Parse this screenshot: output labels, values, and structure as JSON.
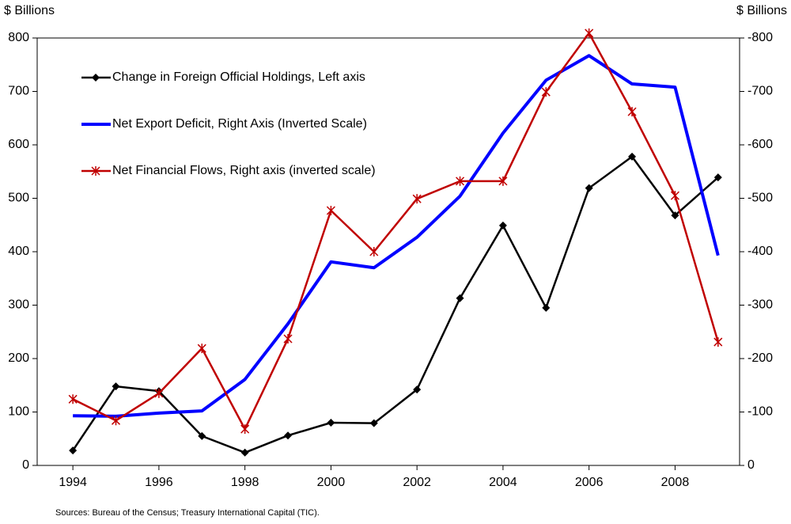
{
  "chart_data": {
    "type": "line",
    "ylabel": "$ Billions",
    "y2label": "$ Billions",
    "note": "Sources:  Bureau of the Census; Treasury International Capital (TIC).",
    "x": [
      1994,
      1995,
      1996,
      1997,
      1998,
      1999,
      2000,
      2001,
      2002,
      2003,
      2004,
      2005,
      2006,
      2007,
      2008,
      2009
    ],
    "xlim": [
      1993.17,
      2009.5
    ],
    "xticks": [
      1994,
      1996,
      1998,
      2000,
      2002,
      2004,
      2006,
      2008
    ],
    "ylim": [
      0,
      800
    ],
    "yticks": [
      0,
      100,
      200,
      300,
      400,
      500,
      600,
      700,
      800
    ],
    "y2lim": [
      0,
      -800
    ],
    "y2ticks": [
      0,
      -100,
      -200,
      -300,
      -400,
      -500,
      -600,
      -700,
      -800
    ],
    "legend": "upper left",
    "series": [
      {
        "name": "Change in Foreign Official Holdings, Left axis",
        "color": "#000000",
        "marker": "diamond",
        "values": [
          28,
          148,
          139,
          55,
          24,
          56,
          80,
          79,
          142,
          313,
          449,
          295,
          519,
          578,
          468,
          539
        ]
      },
      {
        "name": "Net Export Deficit, Right Axis (Inverted Scale)",
        "color": "#0000ff",
        "axis": "y2",
        "values": [
          -93,
          -92,
          -98,
          -102,
          -161,
          -265,
          -381,
          -370,
          -427,
          -504,
          -622,
          -721,
          -767,
          -714,
          -708,
          -393
        ]
      },
      {
        "name": "Net Financial Flows, Right axis (inverted scale)",
        "color": "#c00000",
        "axis": "y2",
        "marker": "star",
        "values": [
          -124,
          -84,
          -135,
          -219,
          -68,
          -237,
          -477,
          -400,
          -499,
          -532,
          -532,
          -699,
          -809,
          -662,
          -505,
          -231
        ]
      }
    ]
  }
}
